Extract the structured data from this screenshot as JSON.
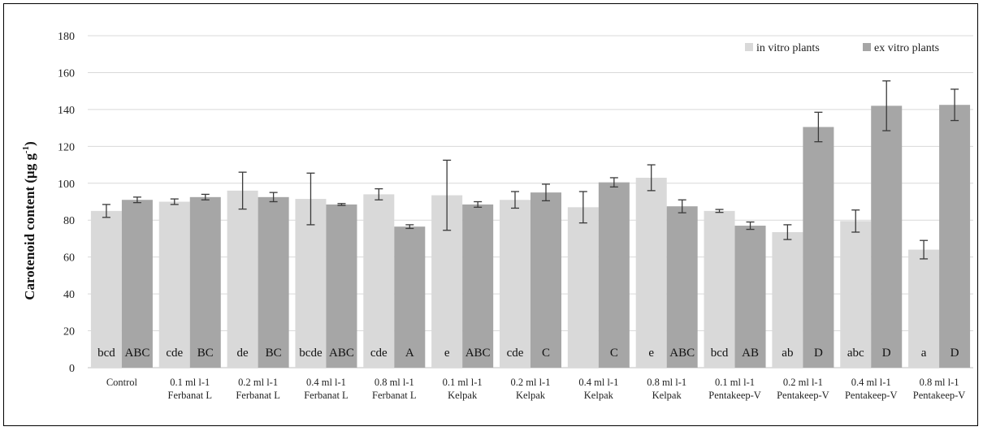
{
  "chart_data": {
    "type": "bar",
    "ylabel": "Carotenoid content (μg g",
    "ylabel_sup": "-1",
    "ylabel_end": ")",
    "ylim": [
      0,
      180
    ],
    "yticks": [
      0,
      20,
      40,
      60,
      80,
      100,
      120,
      140,
      160,
      180
    ],
    "grid": true,
    "legend_position": "top-right",
    "categories": [
      [
        "Control"
      ],
      [
        "0.1 ml l-1",
        "Ferbanat L"
      ],
      [
        "0.2 ml l-1",
        "Ferbanat L"
      ],
      [
        "0.4 ml l-1",
        "Ferbanat L"
      ],
      [
        "0.8 ml l-1",
        "Ferbanat L"
      ],
      [
        "0.1 ml l-1",
        "Kelpak"
      ],
      [
        "0.2 ml l-1",
        "Kelpak"
      ],
      [
        "0.4 ml l-1",
        "Kelpak"
      ],
      [
        "0.8 ml l-1",
        "Kelpak"
      ],
      [
        "0.1 ml l-1",
        "Pentakeep-V"
      ],
      [
        "0.2 ml l-1",
        "Pentakeep-V"
      ],
      [
        "0.4 ml l-1",
        "Pentakeep-V"
      ],
      [
        "0.8 ml l-1",
        "Pentakeep-V"
      ]
    ],
    "series": [
      {
        "name": "in vitro plants",
        "color": "#d9d9d9",
        "values": [
          85,
          90,
          96,
          91.5,
          94,
          93.5,
          91,
          87,
          103,
          85,
          73.5,
          79.5,
          64
        ],
        "error": [
          3.5,
          1.5,
          10,
          14,
          3,
          19,
          4.5,
          8.5,
          7,
          0.8,
          4,
          6,
          5
        ],
        "letters": [
          "bcd",
          "cde",
          "de",
          "bcde",
          "cde",
          "e",
          "cde",
          "",
          "e",
          "bcd",
          "ab",
          "abc",
          "a"
        ]
      },
      {
        "name": "ex vitro plants",
        "color": "#a6a6a6",
        "values": [
          91,
          92.5,
          92.5,
          88.5,
          76.5,
          88.5,
          95,
          100.5,
          87.5,
          77,
          130.5,
          142,
          142.5
        ],
        "error": [
          1.5,
          1.5,
          2.5,
          0.5,
          1,
          1.5,
          4.5,
          2.5,
          3.5,
          2,
          8,
          13.5,
          8.5
        ],
        "letters": [
          "ABC",
          "BC",
          "BC",
          "ABC",
          "A",
          "ABC",
          "C",
          "C",
          "ABC",
          "AB",
          "D",
          "D",
          "D"
        ]
      }
    ]
  }
}
